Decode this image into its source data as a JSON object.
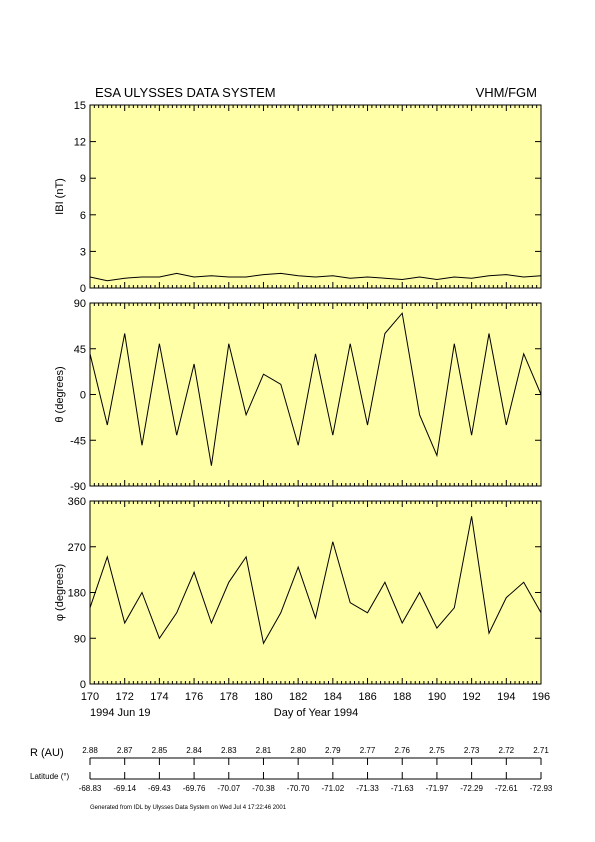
{
  "header": {
    "left_title": "ESA ULYSSES DATA SYSTEM",
    "right_title": "VHM/FGM"
  },
  "colors": {
    "panel_fill": "#ffffa8",
    "line": "#000000"
  },
  "chart_data": [
    {
      "type": "line",
      "ylabel": "IBI (nT)",
      "ylim": [
        0,
        15
      ],
      "yticks": [
        "0",
        "3",
        "6",
        "9",
        "12",
        "15"
      ],
      "xlim": [
        170,
        196
      ],
      "series": [
        {
          "x": [
            170,
            171,
            172,
            173,
            174,
            175,
            176,
            177,
            178,
            179,
            180,
            181,
            182,
            183,
            184,
            185,
            186,
            187,
            188,
            189,
            190,
            191,
            192,
            193,
            194,
            195,
            196
          ],
          "values": [
            0.9,
            0.6,
            0.8,
            0.9,
            0.9,
            1.2,
            0.9,
            1.0,
            0.9,
            0.9,
            1.1,
            1.2,
            1.0,
            0.9,
            1.0,
            0.8,
            0.9,
            0.8,
            0.7,
            0.9,
            0.7,
            0.9,
            0.8,
            1.0,
            1.1,
            0.9,
            1.0
          ]
        }
      ]
    },
    {
      "type": "line",
      "ylabel": "θ (degrees)",
      "ylim": [
        -90,
        90
      ],
      "yticks": [
        "-90",
        "-45",
        "0",
        "45",
        "90"
      ],
      "xlim": [
        170,
        196
      ],
      "series": [
        {
          "x": [
            170,
            171,
            172,
            173,
            174,
            175,
            176,
            177,
            178,
            179,
            180,
            181,
            182,
            183,
            184,
            185,
            186,
            187,
            188,
            189,
            190,
            191,
            192,
            193,
            194,
            195,
            196
          ],
          "values": [
            40,
            -30,
            60,
            -50,
            50,
            -40,
            30,
            -70,
            50,
            -20,
            20,
            10,
            -50,
            40,
            -40,
            50,
            -30,
            60,
            80,
            -20,
            -60,
            50,
            -40,
            60,
            -30,
            40,
            0
          ]
        }
      ]
    },
    {
      "type": "line",
      "ylabel": "φ (degrees)",
      "ylim": [
        0,
        360
      ],
      "yticks": [
        "0",
        "90",
        "180",
        "270",
        "360"
      ],
      "xlim": [
        170,
        196
      ],
      "xticks": [
        "170",
        "172",
        "174",
        "176",
        "178",
        "180",
        "182",
        "184",
        "186",
        "188",
        "190",
        "192",
        "194",
        "196"
      ],
      "xlabel": "Day of Year 1994",
      "date_label": "1994 Jun 19",
      "series": [
        {
          "x": [
            170,
            171,
            172,
            173,
            174,
            175,
            176,
            177,
            178,
            179,
            180,
            181,
            182,
            183,
            184,
            185,
            186,
            187,
            188,
            189,
            190,
            191,
            192,
            193,
            194,
            195,
            196
          ],
          "values": [
            150,
            250,
            120,
            180,
            90,
            140,
            220,
            120,
            200,
            250,
            80,
            140,
            230,
            130,
            280,
            160,
            140,
            200,
            120,
            180,
            110,
            150,
            330,
            100,
            170,
            200,
            140
          ]
        }
      ]
    }
  ],
  "distance_axis": {
    "label": "R (AU)",
    "values": [
      "2.88",
      "2.87",
      "2.85",
      "2.84",
      "2.83",
      "2.81",
      "2.80",
      "2.79",
      "2.77",
      "2.76",
      "2.75",
      "2.73",
      "2.72",
      "2.71"
    ]
  },
  "latitude_axis": {
    "label": "Latitude (°)",
    "values": [
      "-68.83",
      "-69.14",
      "-69.43",
      "-69.76",
      "-70.07",
      "-70.38",
      "-70.70",
      "-71.02",
      "-71.33",
      "-71.63",
      "-71.97",
      "-72.29",
      "-72.61",
      "-72.93"
    ]
  },
  "footer": {
    "generated": "Generated from IDL by Ulysses Data System on Wed Jul 4 17:22:46 2001"
  }
}
